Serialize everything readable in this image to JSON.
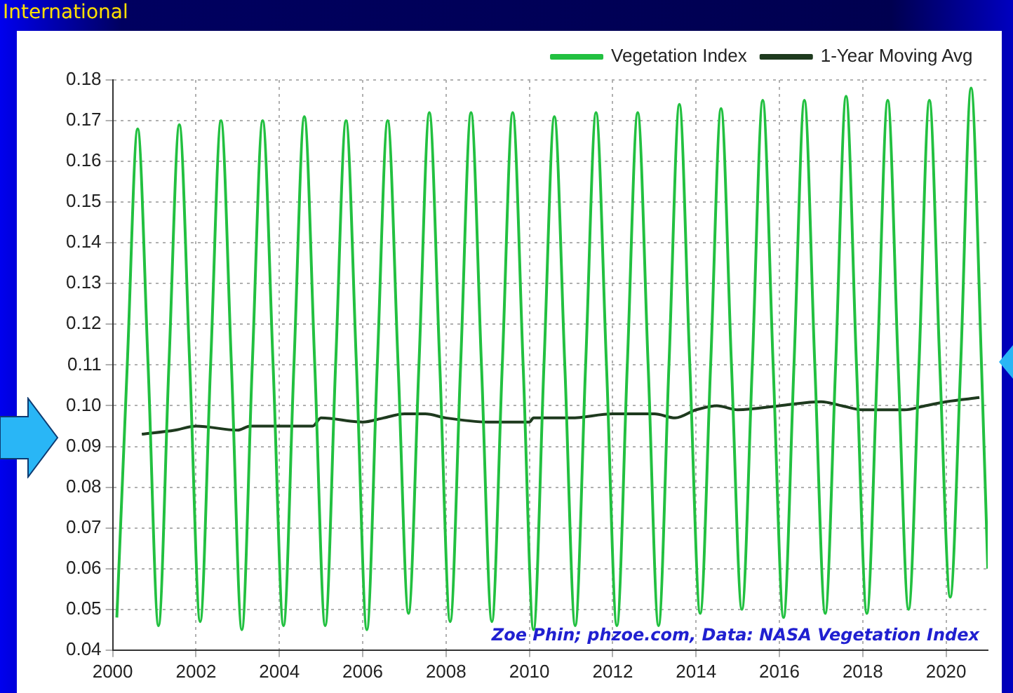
{
  "chart_data": {
    "type": "line",
    "annotations": [
      "International",
      "Zoe Phin; phzoe.com, Data: NASA Vegetation Index"
    ],
    "xlim": [
      2000,
      2021
    ],
    "xticks": [
      2000,
      2002,
      2004,
      2006,
      2008,
      2010,
      2012,
      2014,
      2016,
      2018,
      2020
    ],
    "ylim": [
      0.04,
      0.18
    ],
    "yticks": [
      0.04,
      0.05,
      0.06,
      0.07,
      0.08,
      0.09,
      {
        "value": 0.1,
        "label": "0.10"
      },
      0.11,
      0.12,
      0.13,
      0.14,
      0.15,
      0.16,
      0.17,
      0.18
    ],
    "grid": true,
    "legend": "top",
    "marker": "none",
    "line_style": "solid",
    "series": [
      {
        "name": "Vegetation Index",
        "color": "#22c040",
        "x": [
          2000.1,
          2000.35,
          2000.6,
          2000.85,
          2001.1,
          2001.35,
          2001.6,
          2001.85,
          2002.1,
          2002.35,
          2002.6,
          2002.85,
          2003.1,
          2003.35,
          2003.6,
          2003.85,
          2004.1,
          2004.35,
          2004.6,
          2004.85,
          2005.1,
          2005.35,
          2005.6,
          2005.85,
          2006.1,
          2006.35,
          2006.6,
          2006.85,
          2007.1,
          2007.35,
          2007.6,
          2007.85,
          2008.1,
          2008.35,
          2008.6,
          2008.85,
          2009.1,
          2009.35,
          2009.6,
          2009.85,
          2010.1,
          2010.35,
          2010.6,
          2010.85,
          2011.1,
          2011.35,
          2011.6,
          2011.85,
          2012.1,
          2012.35,
          2012.6,
          2012.85,
          2013.1,
          2013.35,
          2013.6,
          2013.85,
          2014.1,
          2014.35,
          2014.6,
          2014.85,
          2015.1,
          2015.35,
          2015.6,
          2015.85,
          2016.1,
          2016.35,
          2016.6,
          2016.85,
          2017.1,
          2017.35,
          2017.6,
          2017.85,
          2018.1,
          2018.35,
          2018.6,
          2018.85,
          2019.1,
          2019.35,
          2019.6,
          2019.85,
          2020.1,
          2020.35,
          2020.6,
          2020.85,
          2021.0
        ],
        "values": [
          0.048,
          0.11,
          0.168,
          0.11,
          0.046,
          0.11,
          0.169,
          0.11,
          0.047,
          0.11,
          0.17,
          0.11,
          0.045,
          0.11,
          0.17,
          0.11,
          0.046,
          0.11,
          0.171,
          0.11,
          0.046,
          0.11,
          0.17,
          0.11,
          0.045,
          0.11,
          0.17,
          0.11,
          0.049,
          0.11,
          0.172,
          0.11,
          0.047,
          0.11,
          0.172,
          0.11,
          0.047,
          0.11,
          0.172,
          0.11,
          0.045,
          0.11,
          0.171,
          0.11,
          0.046,
          0.11,
          0.172,
          0.11,
          0.046,
          0.11,
          0.172,
          0.11,
          0.046,
          0.11,
          0.174,
          0.11,
          0.049,
          0.11,
          0.173,
          0.11,
          0.05,
          0.11,
          0.175,
          0.11,
          0.048,
          0.11,
          0.175,
          0.11,
          0.049,
          0.11,
          0.176,
          0.11,
          0.049,
          0.11,
          0.175,
          0.11,
          0.05,
          0.11,
          0.175,
          0.11,
          0.053,
          0.11,
          0.178,
          0.11,
          0.06
        ]
      },
      {
        "name": "1-Year Moving Avg",
        "color": "#1e3a1e",
        "x": [
          2000.7,
          2001.5,
          2002.0,
          2003.0,
          2003.3,
          2004.0,
          2004.8,
          2005.0,
          2006.0,
          2006.5,
          2007.0,
          2007.5,
          2008.0,
          2009.0,
          2010.0,
          2010.1,
          2011.0,
          2012.0,
          2013.0,
          2013.5,
          2014.0,
          2014.5,
          2015.0,
          2016.0,
          2017.0,
          2017.5,
          2018.0,
          2019.0,
          2019.5,
          2020.0,
          2020.8
        ],
        "values": [
          0.093,
          0.094,
          0.095,
          0.094,
          0.095,
          0.095,
          0.095,
          0.097,
          0.096,
          0.097,
          0.098,
          0.098,
          0.097,
          0.096,
          0.096,
          0.097,
          0.097,
          0.098,
          0.098,
          0.097,
          0.099,
          0.1,
          0.099,
          0.1,
          0.101,
          0.1,
          0.099,
          0.099,
          0.1,
          0.101,
          0.102
        ]
      }
    ]
  }
}
